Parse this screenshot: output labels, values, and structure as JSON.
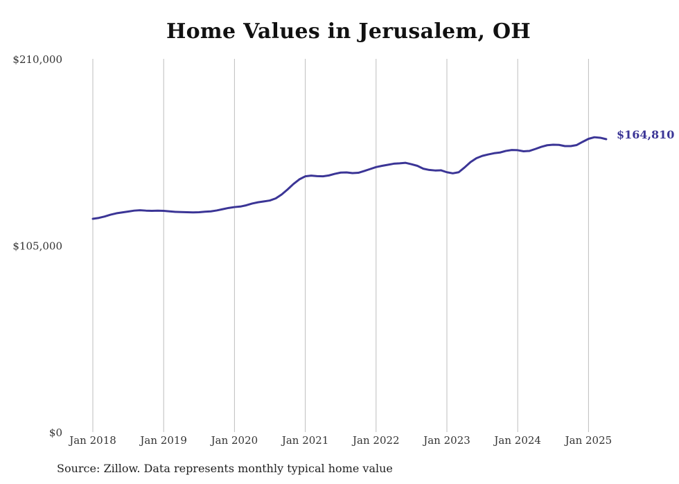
{
  "source_note": "Source: Zillow. Data represents monthly typical home value",
  "colors": {
    "line": "#3b3596",
    "grid": "#bdbdbd",
    "text": "#333333"
  },
  "chart_data": {
    "type": "line",
    "title": "Home Values in Jerusalem, OH",
    "xlabel": "",
    "ylabel": "",
    "ylim": [
      0,
      210000
    ],
    "y_ticks": [
      0,
      105000,
      210000
    ],
    "y_tick_labels": [
      "$0",
      "$105,000",
      "$210,000"
    ],
    "x_ticks": [
      "2018-01",
      "2019-01",
      "2020-01",
      "2021-01",
      "2022-01",
      "2023-01",
      "2024-01",
      "2025-01"
    ],
    "x_tick_labels": [
      "Jan 2018",
      "Jan 2019",
      "Jan 2020",
      "Jan 2021",
      "Jan 2022",
      "Jan 2023",
      "Jan 2024",
      "Jan 2025"
    ],
    "x_range": [
      "2018-01",
      "2025-04"
    ],
    "grid": "vertical at x ticks",
    "end_label": "$164,810",
    "series": [
      {
        "x": [
          "2018-01",
          "2018-02",
          "2018-03",
          "2018-04",
          "2018-05",
          "2018-06",
          "2018-07",
          "2018-08",
          "2018-09",
          "2018-10",
          "2018-11",
          "2018-12",
          "2019-01",
          "2019-02",
          "2019-03",
          "2019-04",
          "2019-05",
          "2019-06",
          "2019-07",
          "2019-08",
          "2019-09",
          "2019-10",
          "2019-11",
          "2019-12",
          "2020-01",
          "2020-02",
          "2020-03",
          "2020-04",
          "2020-05",
          "2020-06",
          "2020-07",
          "2020-08",
          "2020-09",
          "2020-10",
          "2020-11",
          "2020-12",
          "2021-01",
          "2021-02",
          "2021-03",
          "2021-04",
          "2021-05",
          "2021-06",
          "2021-07",
          "2021-08",
          "2021-09",
          "2021-10",
          "2021-11",
          "2021-12",
          "2022-01",
          "2022-02",
          "2022-03",
          "2022-04",
          "2022-05",
          "2022-06",
          "2022-07",
          "2022-08",
          "2022-09",
          "2022-10",
          "2022-11",
          "2022-12",
          "2023-01",
          "2023-02",
          "2023-03",
          "2023-04",
          "2023-05",
          "2023-06",
          "2023-07",
          "2023-08",
          "2023-09",
          "2023-10",
          "2023-11",
          "2023-12",
          "2024-01",
          "2024-02",
          "2024-03",
          "2024-04",
          "2024-05",
          "2024-06",
          "2024-07",
          "2024-08",
          "2024-09",
          "2024-10",
          "2024-11",
          "2024-12",
          "2025-01",
          "2025-02",
          "2025-03",
          "2025-04"
        ],
        "values": [
          120000,
          120500,
          121300,
          122300,
          123100,
          123600,
          124100,
          124600,
          124800,
          124600,
          124500,
          124600,
          124500,
          124200,
          123900,
          123800,
          123700,
          123600,
          123700,
          124000,
          124200,
          124700,
          125400,
          126100,
          126600,
          126900,
          127600,
          128600,
          129300,
          129800,
          130300,
          131500,
          133700,
          136500,
          139600,
          142200,
          143900,
          144300,
          144000,
          143900,
          144400,
          145300,
          146000,
          146100,
          145700,
          145900,
          146900,
          148000,
          149100,
          149800,
          150400,
          151000,
          151200,
          151500,
          150700,
          149800,
          148200,
          147500,
          147200,
          147300,
          146200,
          145600,
          146200,
          148900,
          151900,
          154100,
          155400,
          156200,
          156900,
          157300,
          158200,
          158700,
          158600,
          158000,
          158200,
          159300,
          160500,
          161400,
          161700,
          161600,
          160900,
          160900,
          161500,
          163300,
          165000,
          165900,
          165600,
          164810
        ]
      }
    ]
  }
}
